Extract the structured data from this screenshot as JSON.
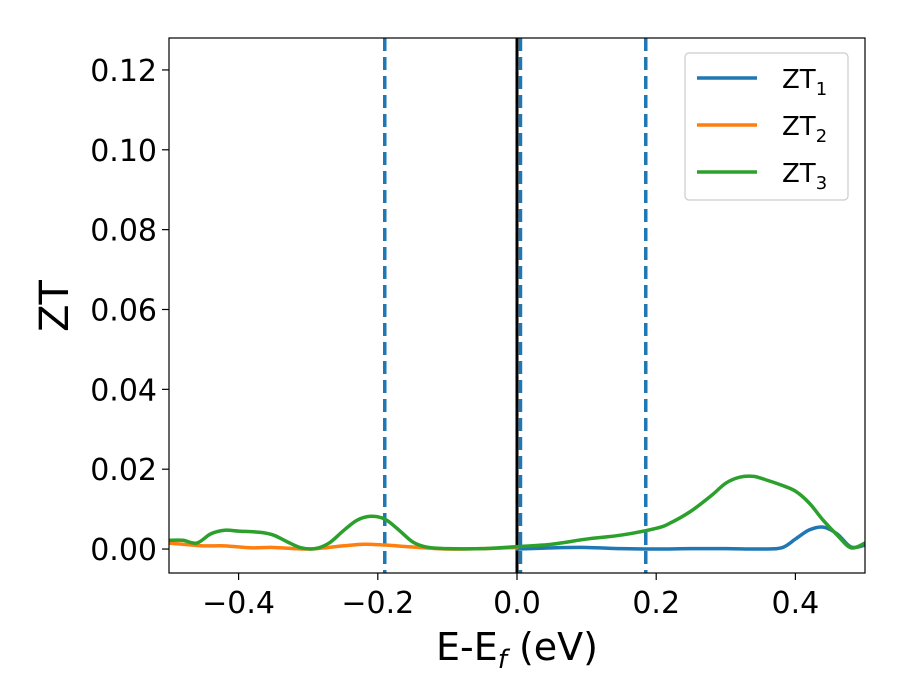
{
  "chart_data": {
    "type": "line",
    "xlabel": "E-E",
    "xlabel_sub": "f",
    "xlabel_unit": " (eV)",
    "ylabel": "ZT",
    "xlim": [
      -0.5,
      0.5
    ],
    "ylim": [
      -0.006,
      0.128
    ],
    "xticks": [
      -0.4,
      -0.2,
      0.0,
      0.2,
      0.4
    ],
    "xtick_labels": [
      "−0.4",
      "−0.2",
      "0.0",
      "0.2",
      "0.4"
    ],
    "yticks": [
      0.0,
      0.02,
      0.04,
      0.06,
      0.08,
      0.1,
      0.12
    ],
    "ytick_labels": [
      "0.00",
      "0.02",
      "0.04",
      "0.06",
      "0.08",
      "0.10",
      "0.12"
    ],
    "grid": false,
    "legend_position": "top-right",
    "vlines": [
      {
        "x": 0.0,
        "style": "solid",
        "color": "#000000"
      },
      {
        "x": -0.19,
        "style": "dashed",
        "color": "#1f77b4"
      },
      {
        "x": 0.005,
        "style": "dashed",
        "color": "#1f77b4"
      },
      {
        "x": 0.185,
        "style": "dashed",
        "color": "#1f77b4"
      }
    ],
    "series": [
      {
        "name": "ZT",
        "sub": "1",
        "color": "#1f77b4",
        "x": [
          0.0,
          0.05,
          0.1,
          0.15,
          0.2,
          0.25,
          0.3,
          0.35,
          0.38,
          0.4,
          0.42,
          0.44,
          0.46,
          0.48,
          0.5
        ],
        "y": [
          0.0,
          0.0003,
          0.0004,
          0.0001,
          0.0,
          0.0001,
          0.0001,
          0.0,
          0.0003,
          0.0025,
          0.0048,
          0.0055,
          0.0038,
          0.0005,
          0.001
        ]
      },
      {
        "name": "ZT",
        "sub": "2",
        "color": "#ff7f0e",
        "x": [
          -0.5,
          -0.48,
          -0.45,
          -0.42,
          -0.38,
          -0.35,
          -0.3,
          -0.25,
          -0.22,
          -0.19,
          -0.15,
          -0.1,
          -0.05,
          0.0
        ],
        "y": [
          0.0015,
          0.0012,
          0.0008,
          0.0008,
          0.0003,
          0.0004,
          0.0,
          0.0008,
          0.0012,
          0.001,
          0.0005,
          0.0,
          0.0001,
          0.0004
        ]
      },
      {
        "name": "ZT",
        "sub": "3",
        "color": "#2ca02c",
        "x": [
          -0.5,
          -0.48,
          -0.46,
          -0.44,
          -0.42,
          -0.4,
          -0.37,
          -0.35,
          -0.33,
          -0.31,
          -0.29,
          -0.27,
          -0.25,
          -0.23,
          -0.21,
          -0.19,
          -0.17,
          -0.15,
          -0.13,
          -0.1,
          -0.05,
          0.0,
          0.05,
          0.1,
          0.15,
          0.2,
          0.22,
          0.25,
          0.28,
          0.3,
          0.32,
          0.34,
          0.36,
          0.38,
          0.4,
          0.42,
          0.44,
          0.46,
          0.48,
          0.5
        ],
        "y": [
          0.0022,
          0.0022,
          0.0015,
          0.0038,
          0.0047,
          0.0045,
          0.0042,
          0.0035,
          0.0018,
          0.0003,
          0.0001,
          0.0015,
          0.0045,
          0.0072,
          0.0082,
          0.0075,
          0.0048,
          0.0018,
          0.0005,
          0.0001,
          0.0001,
          0.0006,
          0.0012,
          0.0025,
          0.0035,
          0.0052,
          0.0065,
          0.0095,
          0.0135,
          0.0165,
          0.018,
          0.0182,
          0.0172,
          0.016,
          0.0145,
          0.0115,
          0.0072,
          0.0035,
          0.0003,
          0.0015
        ]
      }
    ]
  }
}
